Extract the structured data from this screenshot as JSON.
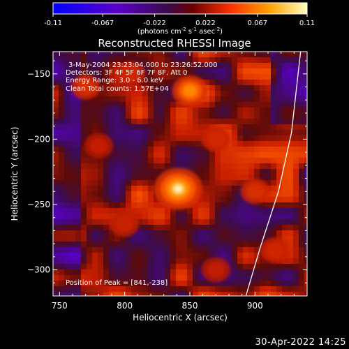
{
  "chart_data": {
    "type": "heatmap",
    "title": "Reconstructed RHESSI Image",
    "xlabel": "Heliocentric X (arcsec)",
    "ylabel": "Heliocentric Y (arcsec)",
    "xlim": [
      745,
      940
    ],
    "ylim": [
      -320,
      -133
    ],
    "x_ticks": [
      750,
      800,
      850,
      900
    ],
    "y_ticks": [
      -150,
      -200,
      -250,
      -300
    ],
    "info_lines": [
      "3-May-2004 23:23:04.000 to 23:26:52.000",
      "Detectors: 3F 4F 5F 6F 7F 8F, Att 0",
      "Energy Range: 3.0 - 6.0 keV",
      "Clean    Total counts: 1.57E+04"
    ],
    "peak_label": "Position of Peak = [841,-238]",
    "peak": [
      841,
      -238
    ],
    "colorbar": {
      "ticks": [
        "-0.11",
        "-0.067",
        "-0.022",
        "0.022",
        "0.067",
        "0.11"
      ],
      "min": -0.11,
      "max": 0.11,
      "unit_base": "(photons cm",
      "unit_exp1": "-2",
      "unit_mid1": " s",
      "unit_exp2": "-1",
      "unit_mid2": " asec",
      "unit_exp3": "-2",
      "unit_end": ")",
      "colors": [
        "#0000ff",
        "#5a00c8",
        "#4b0082",
        "#30103a",
        "#c81000",
        "#ff5000",
        "#ffa000",
        "#ffff80"
      ]
    },
    "sources": [
      {
        "x": 841,
        "y": -238,
        "level": 0.11
      },
      {
        "x": 850,
        "y": -163,
        "level": 0.07
      },
      {
        "x": 770,
        "y": -160,
        "level": 0.03
      },
      {
        "x": 900,
        "y": -240,
        "level": 0.03
      },
      {
        "x": 870,
        "y": -200,
        "level": 0.025
      },
      {
        "x": 780,
        "y": -205,
        "level": 0.02
      },
      {
        "x": 800,
        "y": -265,
        "level": 0.022
      },
      {
        "x": 805,
        "y": -150,
        "level": 0.025
      },
      {
        "x": 870,
        "y": -300,
        "level": 0.02
      },
      {
        "x": 915,
        "y": -285,
        "level": 0.025
      }
    ],
    "limb_curve": [
      [
        935,
        -133
      ],
      [
        928,
        -195
      ],
      [
        918,
        -240
      ],
      [
        904,
        -283
      ],
      [
        893,
        -320
      ]
    ]
  },
  "timestamp": "30-Apr-2022 14:25"
}
